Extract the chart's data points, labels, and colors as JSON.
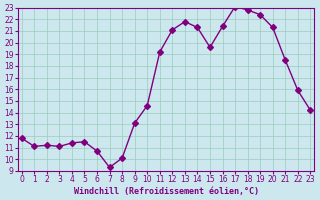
{
  "x": [
    0,
    1,
    2,
    3,
    4,
    5,
    6,
    7,
    8,
    9,
    10,
    11,
    12,
    13,
    14,
    15,
    16,
    17,
    18,
    19,
    20,
    21,
    22,
    23
  ],
  "y": [
    11.8,
    11.1,
    11.2,
    11.1,
    11.4,
    11.5,
    10.7,
    9.3,
    10.1,
    13.1,
    14.6,
    19.2,
    21.1,
    21.8,
    21.3,
    19.6,
    21.4,
    23.1,
    22.8,
    22.4,
    21.3,
    18.5,
    15.9,
    14.2
  ],
  "line_color": "#800080",
  "marker": "D",
  "marker_size": 3,
  "bg_color": "#cce8ee",
  "grid_color": "#99ccbb",
  "xlabel": "Windchill (Refroidissement éolien,°C)",
  "xlabel_color": "#800080",
  "tick_color": "#800080",
  "xlim_min": -0.3,
  "xlim_max": 23.3,
  "ylim_min": 9,
  "ylim_max": 23,
  "yticks": [
    9,
    10,
    11,
    12,
    13,
    14,
    15,
    16,
    17,
    18,
    19,
    20,
    21,
    22,
    23
  ],
  "xticks": [
    0,
    1,
    2,
    3,
    4,
    5,
    6,
    7,
    8,
    9,
    10,
    11,
    12,
    13,
    14,
    15,
    16,
    17,
    18,
    19,
    20,
    21,
    22,
    23
  ]
}
